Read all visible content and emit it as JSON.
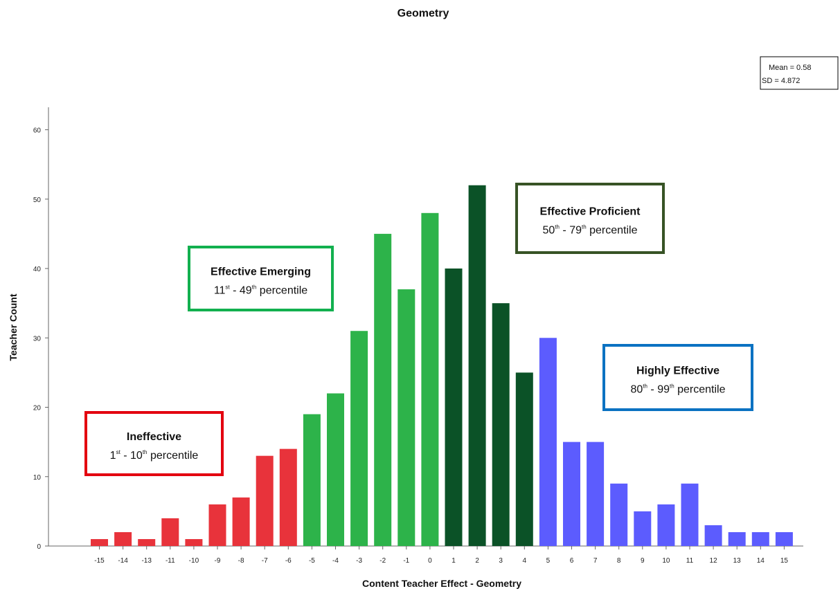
{
  "chart_data": {
    "type": "bar",
    "title": "Geometry",
    "xlabel": "Content Teacher Effect - Geometry",
    "ylabel": "Teacher Count",
    "categories": [
      "-15",
      "-14",
      "-13",
      "-11",
      "-10",
      "-9",
      "-8",
      "-7",
      "-6",
      "-5",
      "-4",
      "-3",
      "-2",
      "-1",
      "0",
      "1",
      "2",
      "3",
      "4",
      "5",
      "6",
      "7",
      "8",
      "9",
      "10",
      "11",
      "12",
      "13",
      "14",
      "15"
    ],
    "values": [
      1,
      2,
      1,
      4,
      1,
      6,
      7,
      13,
      14,
      19,
      22,
      31,
      45,
      37,
      48,
      40,
      52,
      35,
      25,
      30,
      15,
      15,
      9,
      5,
      6,
      9,
      3,
      2,
      2,
      2
    ],
    "ylim": [
      0,
      62
    ],
    "yticks": [
      0,
      10,
      20,
      30,
      40,
      50,
      60
    ],
    "grid": false,
    "stats": {
      "mean": "Mean = 0.58",
      "sd": "SD = 4.872"
    },
    "groups": [
      {
        "title": "Ineffective",
        "from": "1",
        "from_sup": "st",
        "to": "10",
        "to_sup": "th",
        "suffix": "percentile",
        "color": "#e8333b",
        "border": "#e3000f",
        "first": 0,
        "last": 8
      },
      {
        "title": "Effective Emerging",
        "from": "11",
        "from_sup": "st",
        "to": "49",
        "to_sup": "th",
        "suffix": "percentile",
        "color": "#2db34a",
        "border": "#12b04f",
        "first": 9,
        "last": 14
      },
      {
        "title": "Effective Proficient",
        "from": "50",
        "from_sup": "th",
        "to": "79",
        "to_sup": "th",
        "suffix": "percentile",
        "color": "#0b5227",
        "border": "#375325",
        "first": 15,
        "last": 18
      },
      {
        "title": "Highly Effective",
        "from": "80",
        "from_sup": "th",
        "to": "99",
        "to_sup": "th",
        "suffix": "percentile",
        "color": "#5c5cfe",
        "border": "#0b72c2",
        "first": 19,
        "last": 29
      }
    ]
  }
}
